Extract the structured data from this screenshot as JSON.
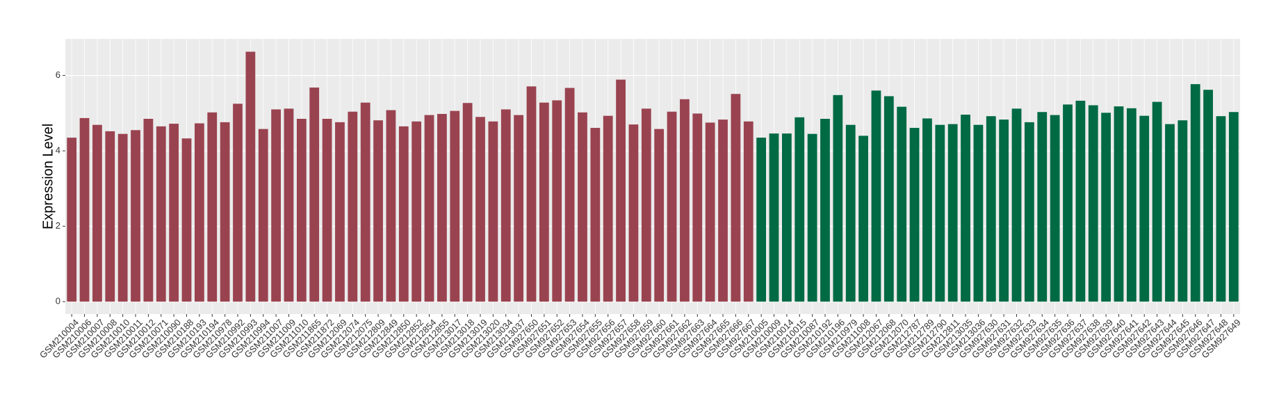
{
  "chart_data": {
    "type": "bar",
    "y_label": "Expression Level",
    "categories": [
      "GSM210004",
      "GSM210006",
      "GSM210007",
      "GSM210008",
      "GSM210010",
      "GSM210011",
      "GSM210012",
      "GSM210071",
      "GSM210090",
      "GSM210188",
      "GSM210193",
      "GSM210194",
      "GSM210978",
      "GSM210992",
      "GSM210993",
      "GSM210994",
      "GSM211007",
      "GSM211009",
      "GSM211010",
      "GSM211865",
      "GSM211872",
      "GSM212069",
      "GSM212074",
      "GSM212075",
      "GSM212809",
      "GSM212849",
      "GSM212850",
      "GSM212852",
      "GSM212854",
      "GSM212855",
      "GSM213017",
      "GSM213018",
      "GSM213019",
      "GSM213020",
      "GSM213034",
      "GSM213037",
      "GSM927650",
      "GSM927651",
      "GSM927652",
      "GSM927653",
      "GSM927654",
      "GSM927655",
      "GSM927656",
      "GSM927657",
      "GSM927658",
      "GSM927659",
      "GSM927660",
      "GSM927661",
      "GSM927662",
      "GSM927663",
      "GSM927664",
      "GSM927665",
      "GSM927666",
      "GSM927667",
      "GSM210005",
      "GSM210009",
      "GSM210014",
      "GSM210015",
      "GSM210087",
      "GSM210192",
      "GSM210196",
      "GSM210979",
      "GSM211008",
      "GSM212067",
      "GSM212068",
      "GSM212070",
      "GSM212787",
      "GSM212789",
      "GSM212790",
      "GSM212811",
      "GSM213035",
      "GSM213036",
      "GSM927630",
      "GSM927631",
      "GSM927632",
      "GSM927633",
      "GSM927634",
      "GSM927635",
      "GSM927636",
      "GSM927637",
      "GSM927638",
      "GSM927639",
      "GSM927640",
      "GSM927641",
      "GSM927642",
      "GSM927643",
      "GSM927644",
      "GSM927645",
      "GSM927646",
      "GSM927647",
      "GSM927648",
      "GSM927649"
    ],
    "values": [
      4.35,
      4.87,
      4.69,
      4.52,
      4.45,
      4.55,
      4.85,
      4.65,
      4.72,
      4.33,
      4.73,
      5.02,
      4.76,
      5.25,
      6.63,
      4.58,
      5.1,
      5.12,
      4.85,
      5.68,
      4.85,
      4.76,
      5.04,
      5.28,
      4.81,
      5.08,
      4.65,
      4.78,
      4.95,
      4.98,
      5.06,
      5.27,
      4.9,
      4.78,
      5.1,
      4.95,
      5.71,
      5.28,
      5.34,
      5.67,
      5.02,
      4.61,
      4.93,
      5.89,
      4.7,
      5.12,
      4.58,
      5.04,
      5.37,
      4.99,
      4.75,
      4.83,
      5.51,
      4.78,
      4.35,
      4.46,
      4.46,
      4.89,
      4.45,
      4.85,
      5.48,
      4.69,
      4.4,
      5.6,
      5.45,
      5.17,
      4.61,
      4.86,
      4.69,
      4.71,
      4.96,
      4.69,
      4.92,
      4.83,
      5.12,
      4.76,
      5.03,
      4.95,
      5.23,
      5.33,
      5.21,
      5.01,
      5.18,
      5.13,
      4.93,
      5.3,
      4.71,
      4.81,
      5.77,
      5.62,
      4.92,
      5.03
    ],
    "colors": [
      "#9a4350",
      "#9a4350",
      "#9a4350",
      "#9a4350",
      "#9a4350",
      "#9a4350",
      "#9a4350",
      "#9a4350",
      "#9a4350",
      "#9a4350",
      "#9a4350",
      "#9a4350",
      "#9a4350",
      "#9a4350",
      "#9a4350",
      "#9a4350",
      "#9a4350",
      "#9a4350",
      "#9a4350",
      "#9a4350",
      "#9a4350",
      "#9a4350",
      "#9a4350",
      "#9a4350",
      "#9a4350",
      "#9a4350",
      "#9a4350",
      "#9a4350",
      "#9a4350",
      "#9a4350",
      "#9a4350",
      "#9a4350",
      "#9a4350",
      "#9a4350",
      "#9a4350",
      "#9a4350",
      "#9a4350",
      "#9a4350",
      "#9a4350",
      "#9a4350",
      "#9a4350",
      "#9a4350",
      "#9a4350",
      "#9a4350",
      "#9a4350",
      "#9a4350",
      "#9a4350",
      "#9a4350",
      "#9a4350",
      "#9a4350",
      "#9a4350",
      "#9a4350",
      "#9a4350",
      "#9a4350",
      "#006a45",
      "#006a45",
      "#006a45",
      "#006a45",
      "#006a45",
      "#006a45",
      "#006a45",
      "#006a45",
      "#006a45",
      "#006a45",
      "#006a45",
      "#006a45",
      "#006a45",
      "#006a45",
      "#006a45",
      "#006a45",
      "#006a45",
      "#006a45",
      "#006a45",
      "#006a45",
      "#006a45",
      "#006a45",
      "#006a45",
      "#006a45",
      "#006a45",
      "#006a45",
      "#006a45",
      "#006a45",
      "#006a45",
      "#006a45",
      "#006a45",
      "#006a45",
      "#006a45",
      "#006a45",
      "#006a45",
      "#006a45",
      "#006a45",
      "#006a45"
    ],
    "ylim": [
      -0.33,
      6.97
    ],
    "yticks": [
      0,
      2,
      4,
      6
    ],
    "grid": true
  }
}
